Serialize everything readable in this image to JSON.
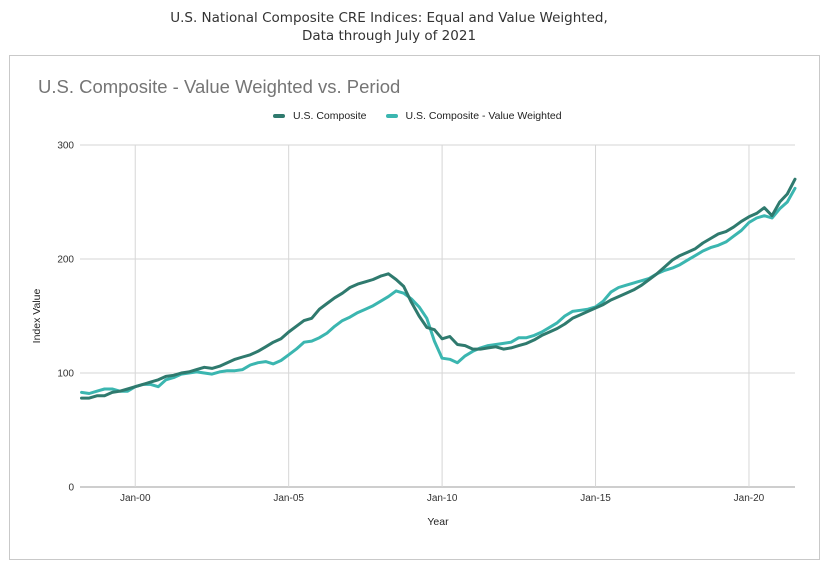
{
  "figure": {
    "title_line1": "U.S. National Composite CRE Indices: Equal and Value Weighted,",
    "title_line2": "Data through July of 2021"
  },
  "colors": {
    "us_composite": "#2f7a6e",
    "value_weighted": "#3bb6b0",
    "grid": "#d6d6d6",
    "frame": "#c9c9c9"
  },
  "chart_data": {
    "type": "line",
    "title": "U.S. Composite - Value Weighted  vs. Period",
    "xlabel": "Year",
    "ylabel": "Index Value",
    "xlim": [
      1998.2,
      2021.5
    ],
    "ylim": [
      0,
      300
    ],
    "yticks": [
      0,
      100,
      200,
      300
    ],
    "ytick_labels": [
      "0",
      "100",
      "200",
      "300"
    ],
    "xticks": [
      2000,
      2005,
      2010,
      2015,
      2020
    ],
    "xtick_labels": [
      "Jan-00",
      "Jan-05",
      "Jan-10",
      "Jan-15",
      "Jan-20"
    ],
    "grid": true,
    "legend_position": "top",
    "series": [
      {
        "name": "U.S. Composite",
        "color_key": "us_composite",
        "x": [
          1998.25,
          1998.5,
          1998.75,
          1999.0,
          1999.25,
          1999.5,
          1999.75,
          2000.0,
          2000.25,
          2000.5,
          2000.75,
          2001.0,
          2001.25,
          2001.5,
          2001.75,
          2002.0,
          2002.25,
          2002.5,
          2002.75,
          2003.0,
          2003.25,
          2003.5,
          2003.75,
          2004.0,
          2004.25,
          2004.5,
          2004.75,
          2005.0,
          2005.25,
          2005.5,
          2005.75,
          2006.0,
          2006.25,
          2006.5,
          2006.75,
          2007.0,
          2007.25,
          2007.5,
          2007.75,
          2008.0,
          2008.25,
          2008.5,
          2008.75,
          2009.0,
          2009.25,
          2009.5,
          2009.75,
          2010.0,
          2010.25,
          2010.5,
          2010.75,
          2011.0,
          2011.25,
          2011.5,
          2011.75,
          2012.0,
          2012.25,
          2012.5,
          2012.75,
          2013.0,
          2013.25,
          2013.5,
          2013.75,
          2014.0,
          2014.25,
          2014.5,
          2014.75,
          2015.0,
          2015.25,
          2015.5,
          2015.75,
          2016.0,
          2016.25,
          2016.5,
          2016.75,
          2017.0,
          2017.25,
          2017.5,
          2017.75,
          2018.0,
          2018.25,
          2018.5,
          2018.75,
          2019.0,
          2019.25,
          2019.5,
          2019.75,
          2020.0,
          2020.25,
          2020.5,
          2020.75,
          2021.0,
          2021.25,
          2021.5
        ],
        "values": [
          78,
          78,
          80,
          80,
          83,
          84,
          86,
          88,
          90,
          92,
          94,
          97,
          98,
          100,
          101,
          103,
          105,
          104,
          106,
          109,
          112,
          114,
          116,
          119,
          123,
          127,
          130,
          136,
          141,
          146,
          148,
          156,
          161,
          166,
          170,
          175,
          178,
          180,
          182,
          185,
          187,
          182,
          176,
          162,
          150,
          140,
          138,
          130,
          132,
          125,
          124,
          121,
          121,
          122,
          123,
          121,
          122,
          124,
          126,
          129,
          133,
          136,
          139,
          143,
          148,
          151,
          154,
          157,
          160,
          164,
          167,
          170,
          173,
          177,
          182,
          187,
          193,
          199,
          203,
          206,
          209,
          214,
          218,
          222,
          224,
          228,
          233,
          237,
          240,
          245,
          238,
          250,
          257,
          270
        ]
      },
      {
        "name": "U.S. Composite - Value Weighted",
        "color_key": "value_weighted",
        "x": [
          1998.25,
          1998.5,
          1998.75,
          1999.0,
          1999.25,
          1999.5,
          1999.75,
          2000.0,
          2000.25,
          2000.5,
          2000.75,
          2001.0,
          2001.25,
          2001.5,
          2001.75,
          2002.0,
          2002.25,
          2002.5,
          2002.75,
          2003.0,
          2003.25,
          2003.5,
          2003.75,
          2004.0,
          2004.25,
          2004.5,
          2004.75,
          2005.0,
          2005.25,
          2005.5,
          2005.75,
          2006.0,
          2006.25,
          2006.5,
          2006.75,
          2007.0,
          2007.25,
          2007.5,
          2007.75,
          2008.0,
          2008.25,
          2008.5,
          2008.75,
          2009.0,
          2009.25,
          2009.5,
          2009.75,
          2010.0,
          2010.25,
          2010.5,
          2010.75,
          2011.0,
          2011.25,
          2011.5,
          2011.75,
          2012.0,
          2012.25,
          2012.5,
          2012.75,
          2013.0,
          2013.25,
          2013.5,
          2013.75,
          2014.0,
          2014.25,
          2014.5,
          2014.75,
          2015.0,
          2015.25,
          2015.5,
          2015.75,
          2016.0,
          2016.25,
          2016.5,
          2016.75,
          2017.0,
          2017.25,
          2017.5,
          2017.75,
          2018.0,
          2018.25,
          2018.5,
          2018.75,
          2019.0,
          2019.25,
          2019.5,
          2019.75,
          2020.0,
          2020.25,
          2020.5,
          2020.75,
          2021.0,
          2021.25,
          2021.5
        ],
        "values": [
          83,
          82,
          84,
          86,
          86,
          84,
          84,
          88,
          90,
          90,
          88,
          94,
          96,
          99,
          100,
          101,
          100,
          99,
          101,
          102,
          102,
          103,
          107,
          109,
          110,
          108,
          111,
          116,
          121,
          127,
          128,
          131,
          135,
          141,
          146,
          149,
          153,
          156,
          159,
          163,
          167,
          172,
          170,
          165,
          158,
          148,
          128,
          113,
          112,
          109,
          115,
          119,
          122,
          124,
          125,
          126,
          127,
          131,
          131,
          133,
          136,
          140,
          144,
          150,
          154,
          155,
          156,
          158,
          163,
          171,
          175,
          177,
          179,
          181,
          183,
          187,
          190,
          192,
          195,
          199,
          203,
          207,
          210,
          212,
          215,
          220,
          225,
          232,
          236,
          238,
          236,
          244,
          250,
          262
        ]
      }
    ]
  }
}
